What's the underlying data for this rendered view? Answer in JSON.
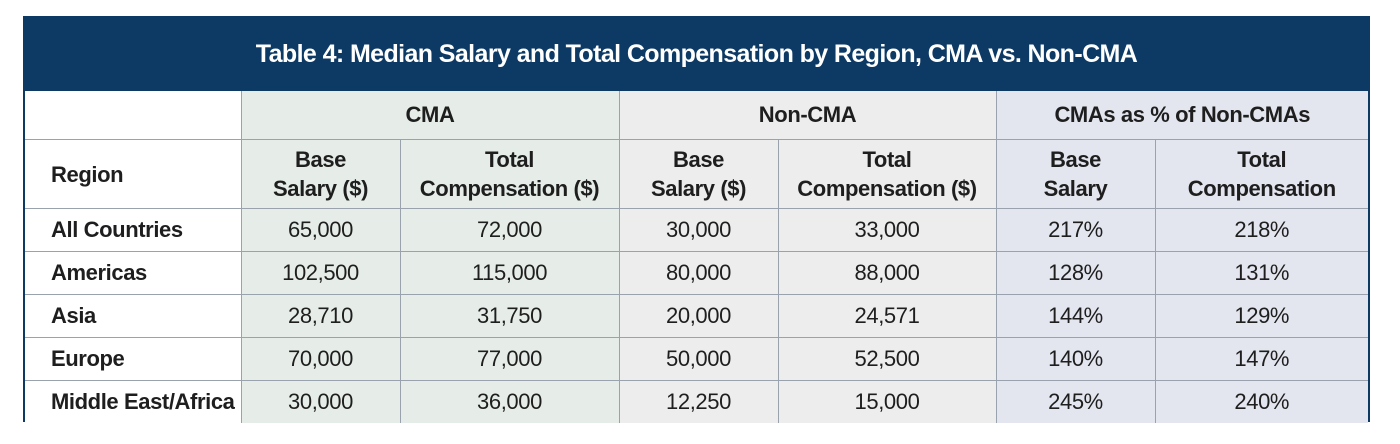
{
  "title": "Table 4: Median Salary and Total Compensation by Region, CMA vs. Non-CMA",
  "region_header": "Region",
  "groups": [
    {
      "label": "CMA",
      "base_label": [
        "Base",
        "Salary ($)"
      ],
      "total_label": [
        "Total",
        "Compensation ($)"
      ]
    },
    {
      "label": "Non-CMA",
      "base_label": [
        "Base",
        "Salary ($)"
      ],
      "total_label": [
        "Total",
        "Compensation ($)"
      ]
    },
    {
      "label": "CMAs as % of Non-CMAs",
      "base_label": [
        "Base",
        "Salary"
      ],
      "total_label": [
        "Total",
        "Compensation"
      ]
    }
  ],
  "rows": [
    {
      "region": "All Countries",
      "values": [
        "65,000",
        "72,000",
        "30,000",
        "33,000",
        "217%",
        "218%"
      ]
    },
    {
      "region": "Americas",
      "values": [
        "102,500",
        "115,000",
        "80,000",
        "88,000",
        "128%",
        "131%"
      ]
    },
    {
      "region": "Asia",
      "values": [
        "28,710",
        "31,750",
        "20,000",
        "24,571",
        "144%",
        "129%"
      ]
    },
    {
      "region": "Europe",
      "values": [
        "70,000",
        "77,000",
        "50,000",
        "52,500",
        "140%",
        "147%"
      ]
    },
    {
      "region": "Middle East/Africa",
      "values": [
        "30,000",
        "36,000",
        "12,250",
        "15,000",
        "245%",
        "240%"
      ]
    }
  ],
  "colors": {
    "title_bar": "#0d3a64",
    "cma_fill": "#e6ede8",
    "non_cma_fill": "#ededee",
    "pct_fill": "#e3e5ef",
    "grid": "#9aa2ad"
  }
}
